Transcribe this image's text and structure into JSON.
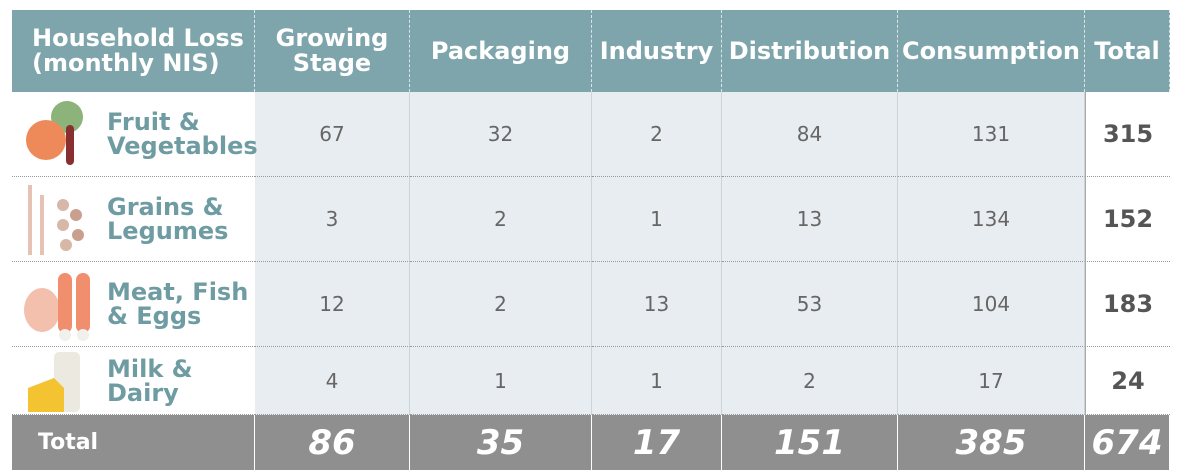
{
  "table": {
    "header": [
      "Household Loss (monthly NIS)",
      "Growing Stage",
      "Packaging",
      "Industry",
      "Distribution",
      "Consumption",
      "Total"
    ],
    "rows": [
      {
        "label": "Fruit & Vegetables",
        "values": [
          67,
          32,
          2,
          84,
          131
        ],
        "total": 315
      },
      {
        "label": "Grains & Legumes",
        "values": [
          3,
          2,
          1,
          13,
          134
        ],
        "total": 152
      },
      {
        "label": "Meat, Fish & Eggs",
        "values": [
          12,
          2,
          13,
          53,
          104
        ],
        "total": 183
      },
      {
        "label": "Milk & Dairy",
        "values": [
          4,
          1,
          1,
          2,
          17
        ],
        "total": 24
      }
    ],
    "footer": {
      "label": "Total",
      "values": [
        86,
        35,
        17,
        151,
        385
      ],
      "total": 674
    }
  }
}
